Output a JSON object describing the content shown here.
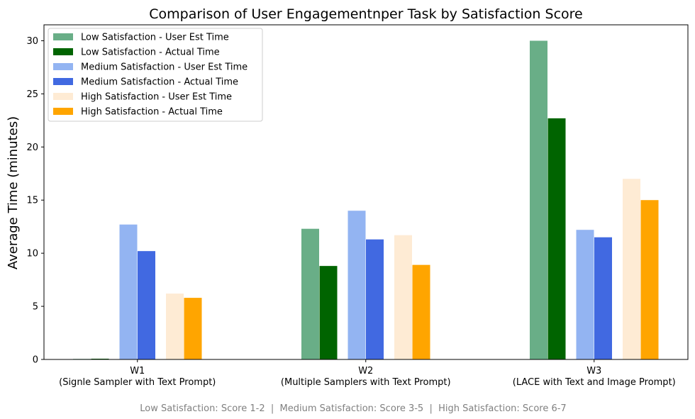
{
  "chart_data": {
    "type": "bar",
    "title": "Comparison of User Engagementnper Task by Satisfaction Score",
    "ylabel": "Average Time (minutes)",
    "xlabel": "",
    "ylim": [
      0,
      31.5
    ],
    "yticks": [
      0,
      5,
      10,
      15,
      20,
      25,
      30
    ],
    "grid": false,
    "legend_position": "top-left",
    "categories": [
      {
        "code": "W1",
        "desc": "(Signle Sampler with Text Prompt)"
      },
      {
        "code": "W2",
        "desc": "(Multiple Samplers with Text Prompt)"
      },
      {
        "code": "W3",
        "desc": "(LACE with Text and Image Prompt)"
      }
    ],
    "series": [
      {
        "name": "Low Satisfaction - User Est Time",
        "color": "#69ae87",
        "values": [
          0.05,
          12.3,
          30.0
        ]
      },
      {
        "name": "Low Satisfaction - Actual Time",
        "color": "#006400",
        "values": [
          0.07,
          8.8,
          22.7
        ]
      },
      {
        "name": "Medium Satisfaction - User Est Time",
        "color": "#93b4f2",
        "values": [
          12.7,
          14.0,
          12.2
        ]
      },
      {
        "name": "Medium Satisfaction - Actual Time",
        "color": "#4169e1",
        "values": [
          10.2,
          11.3,
          11.5
        ]
      },
      {
        "name": "High Satisfaction - User Est Time",
        "color": "#feebd4",
        "values": [
          6.2,
          11.7,
          17.0
        ]
      },
      {
        "name": "High Satisfaction - Actual Time",
        "color": "#ffa500",
        "values": [
          5.8,
          8.9,
          15.0
        ]
      }
    ],
    "footnote": "Low Satisfaction: Score 1-2  |  Medium Satisfaction: Score 3-5  |  High Satisfaction: Score 6-7"
  }
}
